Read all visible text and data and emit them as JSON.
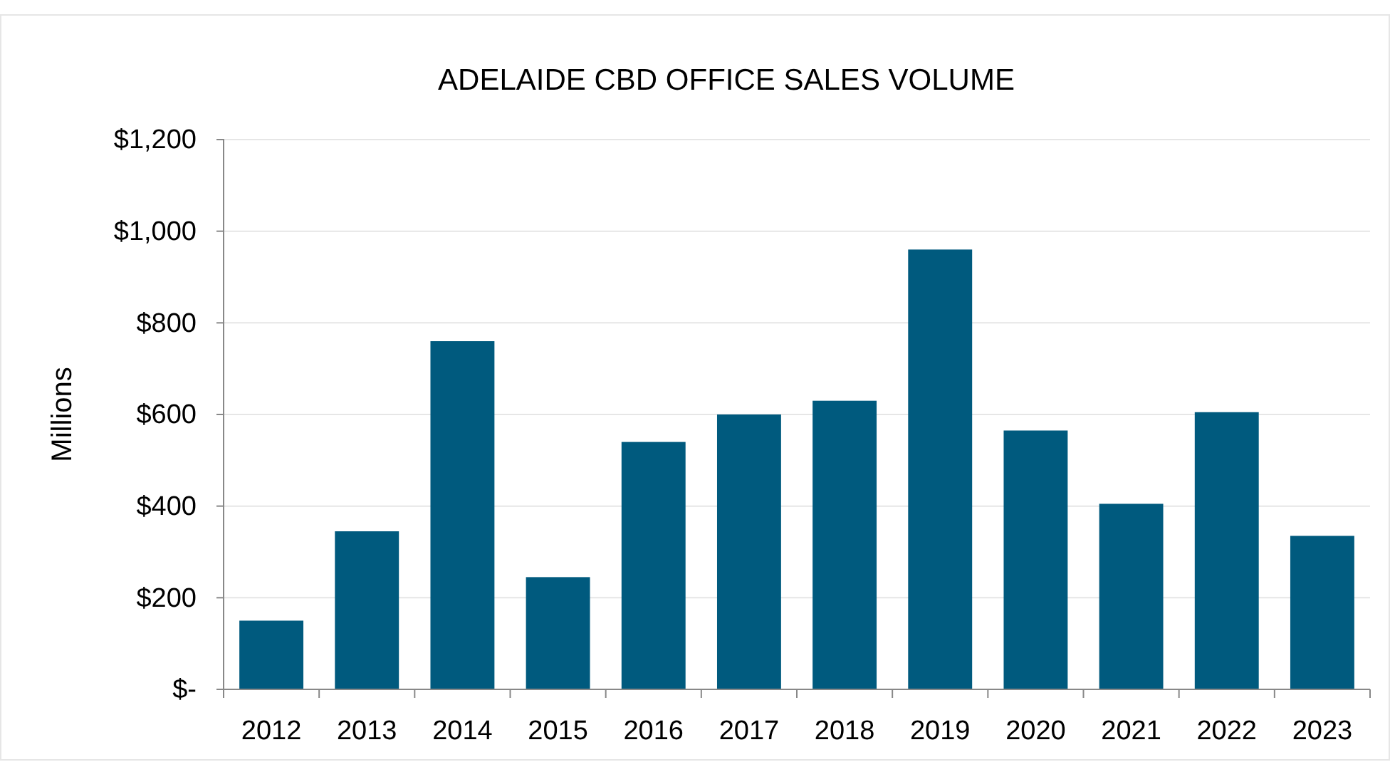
{
  "chart_data": {
    "type": "bar",
    "title": "ADELAIDE CBD OFFICE SALES VOLUME",
    "ylabel": "Millions",
    "categories": [
      "2012",
      "2013",
      "2014",
      "2015",
      "2016",
      "2017",
      "2018",
      "2019",
      "2020",
      "2021",
      "2022",
      "2023"
    ],
    "values": [
      150,
      345,
      760,
      245,
      540,
      600,
      630,
      960,
      565,
      405,
      605,
      335
    ],
    "color": "#005a7e",
    "ylim": [
      0,
      1200
    ],
    "yticks": [
      {
        "value": 0,
        "label": "$-"
      },
      {
        "value": 200,
        "label": "$200"
      },
      {
        "value": 400,
        "label": "$400"
      },
      {
        "value": 600,
        "label": "$600"
      },
      {
        "value": 800,
        "label": "$800"
      },
      {
        "value": 1000,
        "label": "$1,000"
      },
      {
        "value": 1200,
        "label": "$1,200"
      }
    ],
    "grid": "y"
  }
}
